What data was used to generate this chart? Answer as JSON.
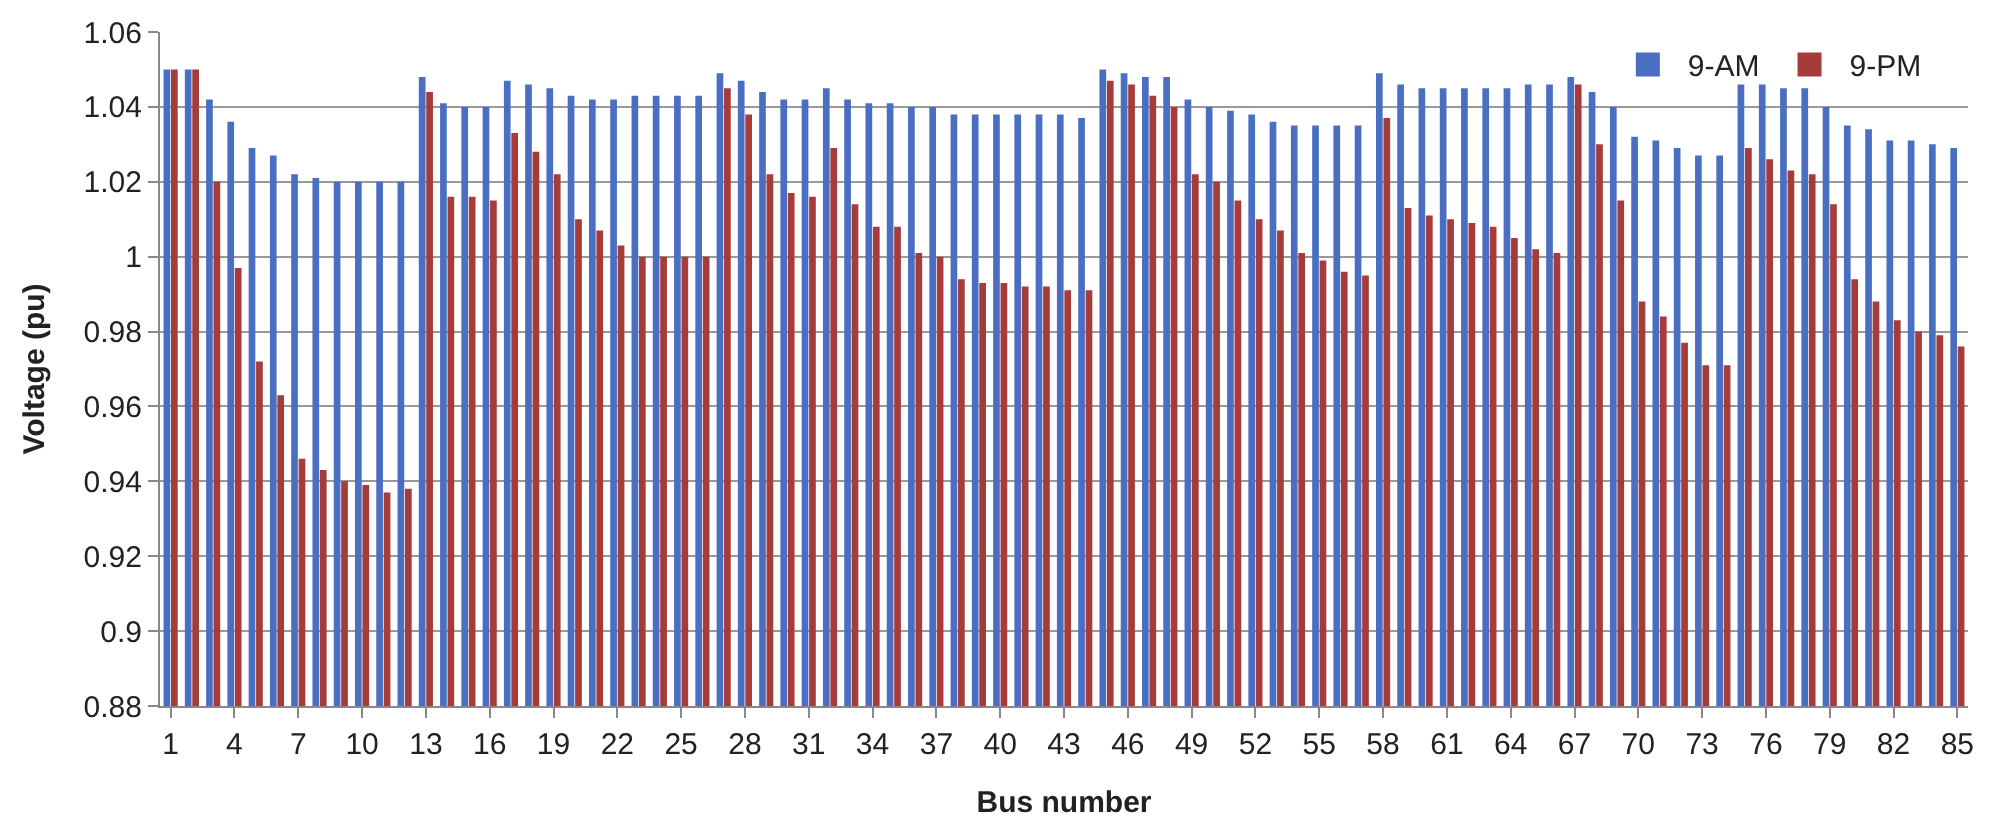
{
  "chart_data": {
    "type": "bar",
    "xlabel": "Bus number",
    "ylabel": "Voltage (pu)",
    "categories": [
      "1",
      null,
      null,
      "4",
      null,
      null,
      "7",
      null,
      null,
      "10",
      null,
      null,
      "13",
      null,
      null,
      "16",
      null,
      null,
      "19",
      null,
      null,
      "22",
      null,
      null,
      "25",
      null,
      null,
      "28",
      null,
      null,
      "31",
      null,
      null,
      "34",
      null,
      null,
      "37",
      null,
      null,
      "40",
      null,
      null,
      "43",
      null,
      null,
      "46",
      null,
      null,
      "49",
      null,
      null,
      "52",
      null,
      null,
      "55",
      null,
      null,
      "58",
      null,
      null,
      "61",
      null,
      null,
      "64",
      null,
      null,
      "67",
      null,
      null,
      "70",
      null,
      null,
      "73",
      null,
      null,
      "76",
      null,
      null,
      "79",
      null,
      null,
      "82",
      null,
      null,
      "85"
    ],
    "series": [
      {
        "name": "9-AM",
        "color": "#4a6fc2",
        "values": [
          1.05,
          1.05,
          1.042,
          1.036,
          1.029,
          1.027,
          1.022,
          1.021,
          1.02,
          1.02,
          1.02,
          1.02,
          1.048,
          1.041,
          1.04,
          1.04,
          1.047,
          1.046,
          1.045,
          1.043,
          1.042,
          1.042,
          1.043,
          1.043,
          1.043,
          1.043,
          1.049,
          1.047,
          1.044,
          1.042,
          1.042,
          1.045,
          1.042,
          1.041,
          1.041,
          1.04,
          1.04,
          1.038,
          1.038,
          1.038,
          1.038,
          1.038,
          1.038,
          1.037,
          1.05,
          1.049,
          1.048,
          1.048,
          1.042,
          1.04,
          1.039,
          1.038,
          1.036,
          1.035,
          1.035,
          1.035,
          1.035,
          1.049,
          1.046,
          1.045,
          1.045,
          1.045,
          1.045,
          1.045,
          1.046,
          1.046,
          1.048,
          1.044,
          1.04,
          1.032,
          1.031,
          1.029,
          1.027,
          1.027,
          1.046,
          1.046,
          1.045,
          1.045,
          1.04,
          1.035,
          1.034,
          1.031,
          1.031,
          1.03,
          1.029
        ]
      },
      {
        "name": "9-PM",
        "color": "#a63c3a",
        "values": [
          1.05,
          1.05,
          1.02,
          0.997,
          0.972,
          0.963,
          0.946,
          0.943,
          0.94,
          0.939,
          0.937,
          0.938,
          1.044,
          1.016,
          1.016,
          1.015,
          1.033,
          1.028,
          1.022,
          1.01,
          1.007,
          1.003,
          1.0,
          1.0,
          1.0,
          1.0,
          1.045,
          1.038,
          1.022,
          1.017,
          1.016,
          1.029,
          1.014,
          1.008,
          1.008,
          1.001,
          1.0,
          0.994,
          0.993,
          0.993,
          0.992,
          0.992,
          0.991,
          0.991,
          1.047,
          1.046,
          1.043,
          1.04,
          1.022,
          1.02,
          1.015,
          1.01,
          1.007,
          1.001,
          0.999,
          0.996,
          0.995,
          1.037,
          1.013,
          1.011,
          1.01,
          1.009,
          1.008,
          1.005,
          1.002,
          1.001,
          1.046,
          1.03,
          1.015,
          0.988,
          0.984,
          0.977,
          0.971,
          0.971,
          1.029,
          1.026,
          1.023,
          1.022,
          1.014,
          0.994,
          0.988,
          0.983,
          0.98,
          0.979,
          0.976
        ]
      }
    ],
    "ylim": [
      0.88,
      1.06
    ],
    "yticks": [
      0.88,
      0.9,
      0.92,
      0.94,
      0.96,
      0.98,
      1,
      1.02,
      1.04,
      1.06
    ],
    "grid": "y",
    "legend": "top right"
  }
}
